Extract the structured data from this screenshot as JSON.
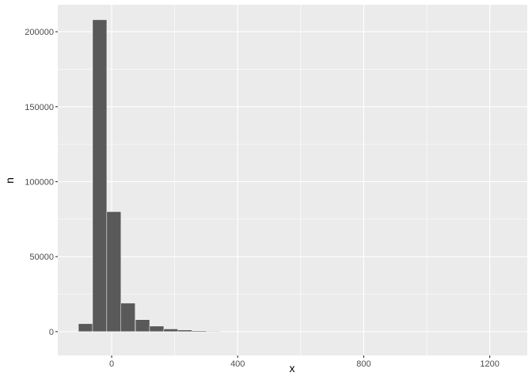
{
  "chart_data": {
    "type": "bar",
    "subtype": "histogram",
    "xlabel": "x",
    "ylabel": "n",
    "xlim": [
      -171,
      1319
    ],
    "ylim": [
      -15900,
      218000
    ],
    "x_ticks": [
      0,
      400,
      800,
      1200
    ],
    "x_tick_labels": [
      "0",
      "400",
      "800",
      "1200"
    ],
    "y_ticks": [
      0,
      50000,
      100000,
      150000,
      200000
    ],
    "y_tick_labels": [
      "0",
      "50000",
      "100000",
      "150000",
      "200000"
    ],
    "bin_width": 45.2,
    "bin_centers": [
      -83,
      -38,
      7,
      52,
      98,
      143,
      188,
      233,
      278,
      324,
      369,
      414,
      459,
      504,
      550,
      595,
      640,
      685,
      730,
      776,
      821,
      866,
      911,
      956,
      1002,
      1047,
      1092,
      1137,
      1182,
      1228
    ],
    "values": [
      5300,
      208000,
      80000,
      19000,
      8000,
      3700,
      1800,
      1100,
      600,
      400,
      0,
      0,
      0,
      0,
      0,
      0,
      0,
      0,
      0,
      0,
      0,
      0,
      0,
      0,
      0,
      0,
      0,
      0,
      0,
      0
    ],
    "grid": true,
    "colors": {
      "panel": "#EBEBEB",
      "bar": "#595959",
      "grid": "#FFFFFF"
    }
  }
}
